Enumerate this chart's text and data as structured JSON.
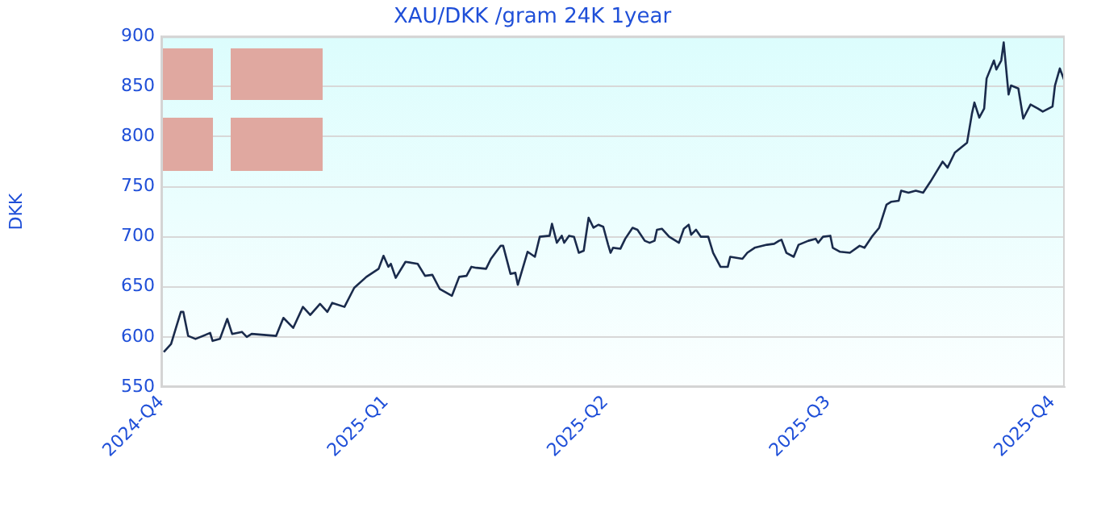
{
  "chart_data": {
    "type": "line",
    "title": "XAU/DKK /gram 24K 1year",
    "ylabel": "DKK",
    "x": [
      "2024-10-02",
      "2024-10-05",
      "2024-10-07",
      "2024-10-09",
      "2024-10-10",
      "2024-10-12",
      "2024-10-15",
      "2024-10-21",
      "2024-10-22",
      "2024-10-25",
      "2024-10-28",
      "2024-10-30",
      "2024-11-03",
      "2024-11-05",
      "2024-11-07",
      "2024-11-17",
      "2024-11-20",
      "2024-11-24",
      "2024-11-28",
      "2024-12-01",
      "2024-12-05",
      "2024-12-08",
      "2024-12-10",
      "2024-12-15",
      "2024-12-19",
      "2024-12-24",
      "2024-12-29",
      "2024-12-31",
      "2025-01-02",
      "2025-01-03",
      "2025-01-05",
      "2025-01-09",
      "2025-01-14",
      "2025-01-17",
      "2025-01-20",
      "2025-01-23",
      "2025-01-28",
      "2025-01-31",
      "2025-02-03",
      "2025-02-05",
      "2025-02-07",
      "2025-02-11",
      "2025-02-13",
      "2025-02-17",
      "2025-02-18",
      "2025-02-21",
      "2025-02-23",
      "2025-02-24",
      "2025-02-28",
      "2025-03-03",
      "2025-03-05",
      "2025-03-09",
      "2025-03-10",
      "2025-03-12",
      "2025-03-14",
      "2025-03-15",
      "2025-03-17",
      "2025-03-19",
      "2025-03-21",
      "2025-03-23",
      "2025-03-25",
      "2025-03-27",
      "2025-03-29",
      "2025-03-31",
      "2025-04-02",
      "2025-04-03",
      "2025-04-04",
      "2025-04-07",
      "2025-04-09",
      "2025-04-12",
      "2025-04-14",
      "2025-04-17",
      "2025-04-19",
      "2025-04-21",
      "2025-04-22",
      "2025-04-24",
      "2025-04-27",
      "2025-05-01",
      "2025-05-03",
      "2025-05-05",
      "2025-05-06",
      "2025-05-08",
      "2025-05-10",
      "2025-05-13",
      "2025-05-15",
      "2025-05-18",
      "2025-05-21",
      "2025-05-22",
      "2025-05-27",
      "2025-05-29",
      "2025-06-01",
      "2025-06-06",
      "2025-06-09",
      "2025-06-11",
      "2025-06-12",
      "2025-06-14",
      "2025-06-17",
      "2025-06-19",
      "2025-06-23",
      "2025-06-26",
      "2025-06-27",
      "2025-06-29",
      "2025-07-02",
      "2025-07-03",
      "2025-07-06",
      "2025-07-10",
      "2025-07-14",
      "2025-07-16",
      "2025-07-19",
      "2025-07-22",
      "2025-07-25",
      "2025-07-27",
      "2025-07-30",
      "2025-07-31",
      "2025-08-03",
      "2025-08-06",
      "2025-08-09",
      "2025-08-12",
      "2025-08-15",
      "2025-08-17",
      "2025-08-19",
      "2025-08-22",
      "2025-08-27",
      "2025-08-29",
      "2025-08-30",
      "2025-09-01",
      "2025-09-03",
      "2025-09-04",
      "2025-09-07",
      "2025-09-08",
      "2025-09-10",
      "2025-09-11",
      "2025-09-13",
      "2025-09-14",
      "2025-09-17",
      "2025-09-19",
      "2025-09-22",
      "2025-09-25",
      "2025-09-27",
      "2025-10-01",
      "2025-10-02",
      "2025-10-04",
      "2025-10-06"
    ],
    "series": [
      {
        "color": "#1a2b4c",
        "values": [
          585,
          593,
          609,
          625,
          625,
          601,
          598,
          604,
          596,
          598,
          618,
          603,
          605,
          600,
          603,
          601,
          619,
          609,
          630,
          622,
          633,
          625,
          634,
          630,
          649,
          660,
          668,
          681,
          670,
          673,
          659,
          675,
          673,
          661,
          662,
          648,
          641,
          660,
          661,
          670,
          669,
          668,
          678,
          691,
          691,
          663,
          664,
          652,
          685,
          680,
          700,
          701,
          713,
          694,
          701,
          694,
          701,
          700,
          684,
          686,
          719,
          709,
          712,
          710,
          692,
          684,
          689,
          688,
          698,
          709,
          707,
          696,
          694,
          696,
          707,
          708,
          700,
          694,
          708,
          712,
          702,
          707,
          700,
          700,
          684,
          670,
          670,
          680,
          678,
          684,
          689,
          692,
          693,
          696,
          697,
          684,
          680,
          692,
          696,
          698,
          694,
          700,
          701,
          689,
          685,
          684,
          691,
          689,
          700,
          709,
          732,
          735,
          736,
          746,
          744,
          746,
          744,
          755,
          767,
          775,
          769,
          784,
          794,
          823,
          834,
          819,
          828,
          858,
          876,
          867,
          876,
          894,
          842,
          851,
          848,
          818,
          832,
          828,
          825,
          830,
          851,
          868,
          855
        ]
      }
    ],
    "xlim": [
      "2024-10-01",
      "2025-10-06"
    ],
    "xticks": [
      {
        "value": "2024-10-01",
        "label": "2024-Q4"
      },
      {
        "value": "2025-01-01",
        "label": "2025-Q1"
      },
      {
        "value": "2025-04-01",
        "label": "2025-Q2"
      },
      {
        "value": "2025-07-01",
        "label": "2025-Q3"
      },
      {
        "value": "2025-10-01",
        "label": "2025-Q4"
      }
    ],
    "ylim": [
      550,
      900
    ],
    "yticks": [
      550,
      600,
      650,
      700,
      750,
      800,
      850,
      900
    ],
    "grid": "y"
  }
}
